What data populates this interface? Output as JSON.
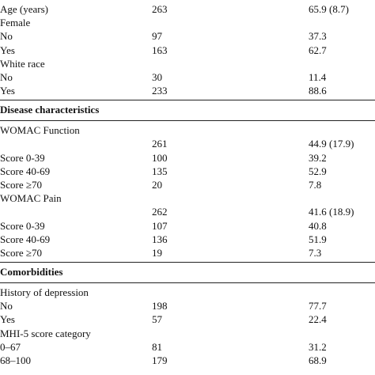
{
  "table": {
    "rows": [
      {
        "label": "Age (years)",
        "n": 263,
        "value": "65.9 (8.7)"
      },
      {
        "label": "Female"
      },
      {
        "label": "No",
        "n": 97,
        "value": 37.3
      },
      {
        "label": "Yes",
        "n": 163,
        "value": 62.7
      },
      {
        "label": "White race"
      },
      {
        "label": "No",
        "n": 30,
        "value": 11.4
      },
      {
        "label": "Yes",
        "n": 233,
        "value": 88.6
      },
      {
        "section": "Disease characteristics"
      },
      {
        "label": "WOMAC Function"
      },
      {
        "n": 261,
        "value": "44.9 (17.9)"
      },
      {
        "label": "Score 0-39",
        "n": 100,
        "value": 39.2
      },
      {
        "label": "Score 40-69",
        "n": 135,
        "value": 52.9
      },
      {
        "label": "Score ≥70",
        "n": 20,
        "value": 7.8
      },
      {
        "label": "WOMAC Pain"
      },
      {
        "n": 262,
        "value": "41.6 (18.9)"
      },
      {
        "label": "Score 0-39",
        "n": 107,
        "value": 40.8
      },
      {
        "label": "Score 40-69",
        "n": 136,
        "value": 51.9
      },
      {
        "label": "Score ≥70",
        "n": 19,
        "value": 7.3
      },
      {
        "section": "Comorbidities"
      },
      {
        "label": "History of depression"
      },
      {
        "label": "No",
        "n": 198,
        "value": 77.7
      },
      {
        "label": "Yes",
        "n": 57,
        "value": 22.4
      },
      {
        "label": "MHI-5 score category"
      },
      {
        "label": "0–67",
        "n": 81,
        "value": 31.2
      },
      {
        "label": "68–100",
        "n": 179,
        "value": 68.9
      }
    ]
  }
}
